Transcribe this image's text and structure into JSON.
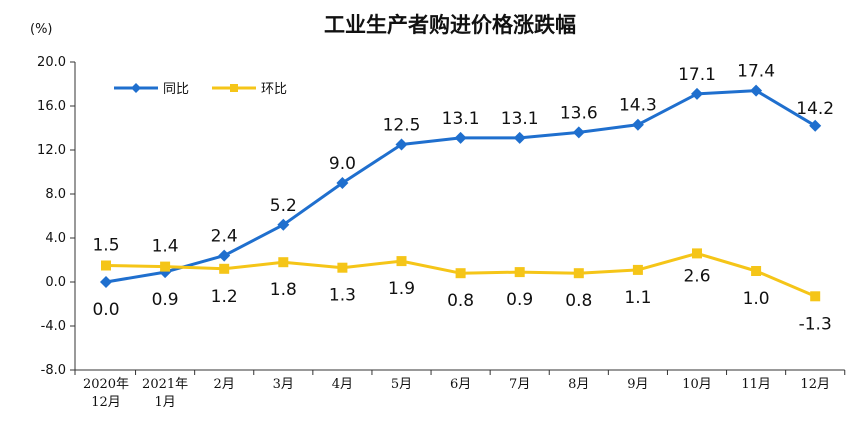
{
  "chart_data": {
    "type": "line",
    "title": "工业生产者购进价格涨跌幅",
    "y_unit": "(%)",
    "ylim": [
      -8.0,
      20.0
    ],
    "yticks": [
      "20.0",
      "16.0",
      "12.0",
      "8.0",
      "4.0",
      "0.0",
      "-4.0",
      "-8.0"
    ],
    "ytick_values": [
      20,
      16,
      12,
      8,
      4,
      0,
      -4,
      -8
    ],
    "categories": [
      [
        "2020年",
        "12月"
      ],
      [
        "2021年",
        "1月"
      ],
      [
        "2月"
      ],
      [
        "3月"
      ],
      [
        "4月"
      ],
      [
        "5月"
      ],
      [
        "6月"
      ],
      [
        "7月"
      ],
      [
        "8月"
      ],
      [
        "9月"
      ],
      [
        "10月"
      ],
      [
        "11月"
      ],
      [
        "12月"
      ]
    ],
    "legend_position": "top-left",
    "grid": false,
    "series": [
      {
        "name": "同比",
        "color": "#1f6fce",
        "marker": "diamond",
        "values": [
          0.0,
          0.9,
          2.4,
          5.2,
          9.0,
          12.5,
          13.1,
          13.1,
          13.6,
          14.3,
          17.1,
          17.4,
          14.2
        ],
        "labels": [
          "0.0",
          "0.9",
          "2.4",
          "5.2",
          "9.0",
          "12.5",
          "13.1",
          "13.1",
          "13.6",
          "14.3",
          "17.1",
          "17.4",
          "14.2"
        ]
      },
      {
        "name": "环比",
        "color": "#f5c518",
        "marker": "square",
        "values": [
          1.5,
          1.4,
          1.2,
          1.8,
          1.3,
          1.9,
          0.8,
          0.9,
          0.8,
          1.1,
          2.6,
          1.0,
          -1.3
        ],
        "labels": [
          "1.5",
          "1.4",
          "1.2",
          "1.8",
          "1.3",
          "1.9",
          "0.8",
          "0.9",
          "0.8",
          "1.1",
          "2.6",
          "1.0",
          "-1.3"
        ]
      }
    ]
  }
}
